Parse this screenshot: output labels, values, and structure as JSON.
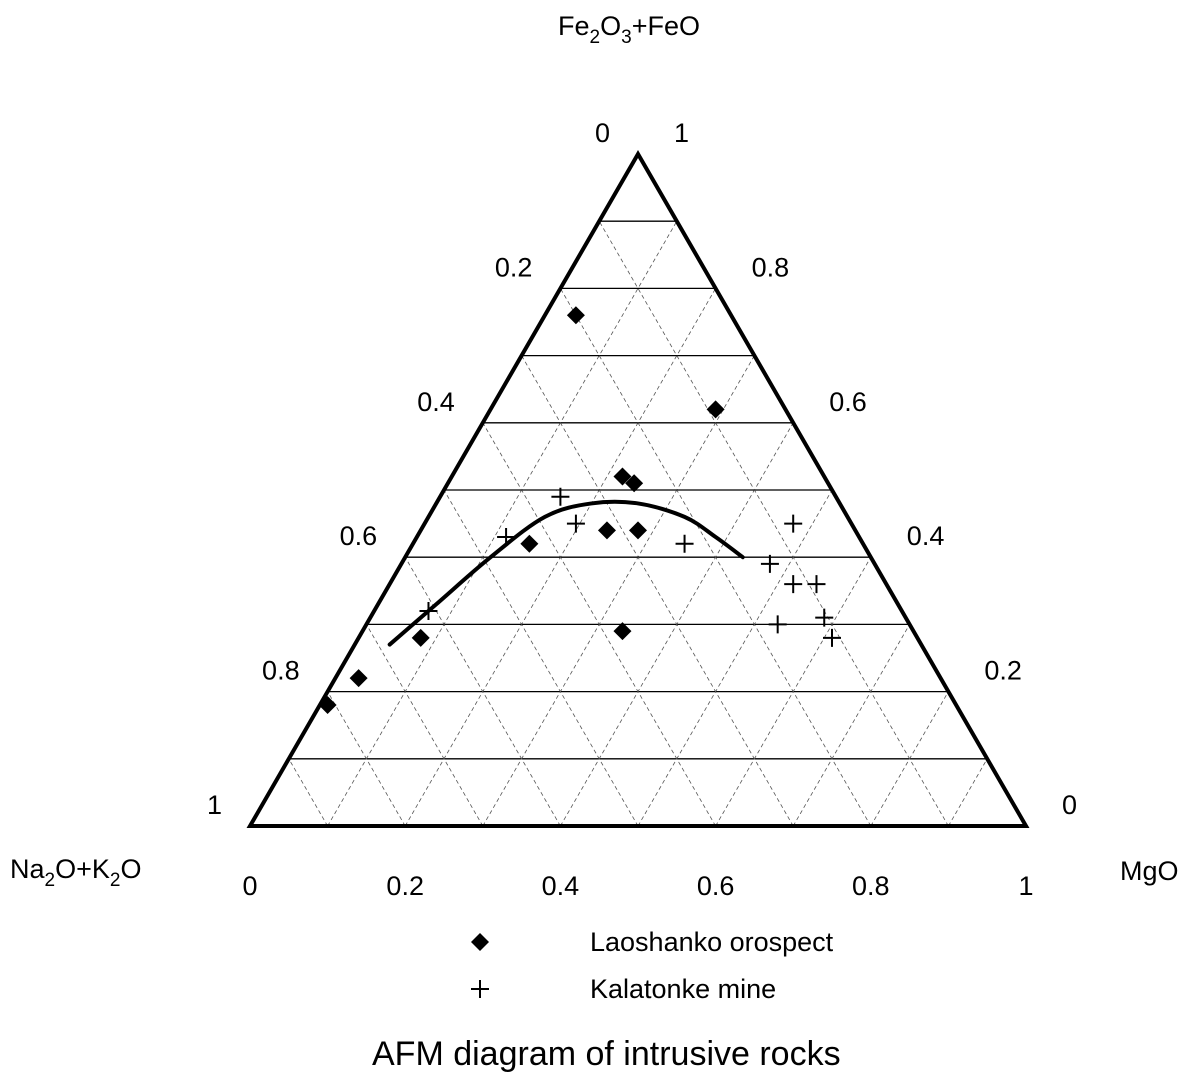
{
  "chart_data": {
    "type": "scatter",
    "subtype": "ternary",
    "title": "AFM diagram of intrusive rocks",
    "axes": {
      "top": {
        "label_parts": [
          "Fe",
          "2",
          "O",
          "3",
          "+FeO"
        ]
      },
      "left": {
        "label_parts": [
          "Na",
          "2",
          "O+K",
          "2",
          "O"
        ]
      },
      "right": {
        "label": "MgO"
      }
    },
    "ticks": {
      "bottom": [
        "0",
        "0.2",
        "0.4",
        "0.6",
        "0.8",
        "1"
      ],
      "left": [
        "1",
        "0.8",
        "0.6",
        "0.4",
        "0.2",
        "0"
      ],
      "right": [
        "0",
        "0.2",
        "0.4",
        "0.6",
        "0.8",
        "1"
      ]
    },
    "grid": true,
    "legend_position": "bottom-center",
    "series": [
      {
        "name": "Laoshanko orospect",
        "marker": "diamond",
        "points": [
          {
            "x": 0.42,
            "y": 0.76
          },
          {
            "x": 0.6,
            "y": 0.62
          },
          {
            "x": 0.48,
            "y": 0.52
          },
          {
            "x": 0.495,
            "y": 0.51
          },
          {
            "x": 0.36,
            "y": 0.42
          },
          {
            "x": 0.46,
            "y": 0.44
          },
          {
            "x": 0.5,
            "y": 0.44
          },
          {
            "x": 0.22,
            "y": 0.28
          },
          {
            "x": 0.48,
            "y": 0.29
          },
          {
            "x": 0.14,
            "y": 0.22
          },
          {
            "x": 0.1,
            "y": 0.18
          }
        ]
      },
      {
        "name": "Kalatonke mine",
        "marker": "plus",
        "points": [
          {
            "x": 0.4,
            "y": 0.49
          },
          {
            "x": 0.42,
            "y": 0.45
          },
          {
            "x": 0.33,
            "y": 0.43
          },
          {
            "x": 0.56,
            "y": 0.42
          },
          {
            "x": 0.23,
            "y": 0.32
          },
          {
            "x": 0.7,
            "y": 0.45
          },
          {
            "x": 0.67,
            "y": 0.39
          },
          {
            "x": 0.7,
            "y": 0.36
          },
          {
            "x": 0.73,
            "y": 0.36
          },
          {
            "x": 0.74,
            "y": 0.31
          },
          {
            "x": 0.68,
            "y": 0.3
          },
          {
            "x": 0.75,
            "y": 0.28
          }
        ]
      }
    ],
    "trend_curve": [
      {
        "x": 0.18,
        "y": 0.27
      },
      {
        "x": 0.24,
        "y": 0.33
      },
      {
        "x": 0.31,
        "y": 0.4
      },
      {
        "x": 0.38,
        "y": 0.46
      },
      {
        "x": 0.44,
        "y": 0.48
      },
      {
        "x": 0.5,
        "y": 0.48
      },
      {
        "x": 0.56,
        "y": 0.46
      },
      {
        "x": 0.6,
        "y": 0.43
      },
      {
        "x": 0.635,
        "y": 0.4
      }
    ]
  }
}
